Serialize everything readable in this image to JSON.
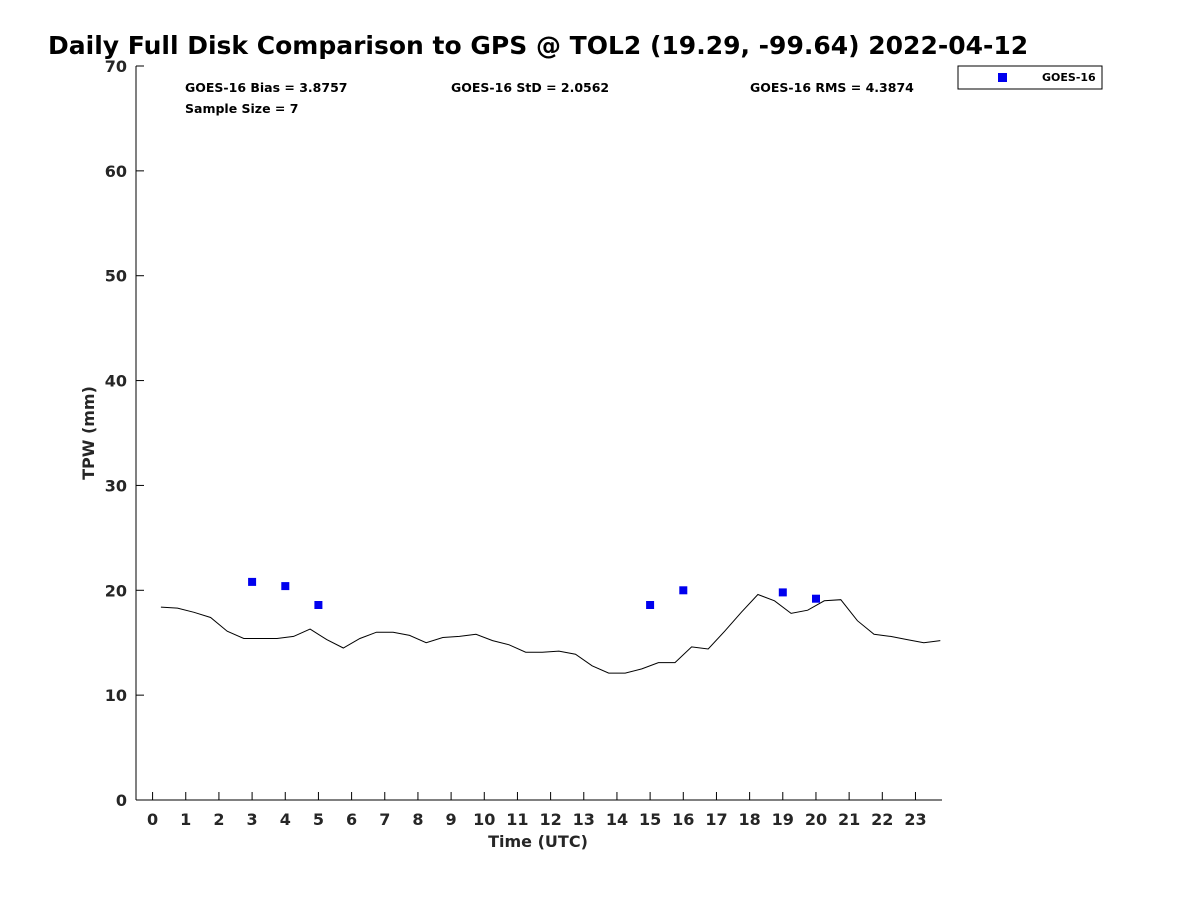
{
  "chart_data": {
    "type": "scatter",
    "title": "Daily Full Disk Comparison to GPS @ TOL2 (19.29, -99.64) 2022-04-12",
    "xlabel": "Time (UTC)",
    "ylabel": "TPW (mm)",
    "xlim": [
      -0.5,
      23.8
    ],
    "ylim": [
      0,
      70
    ],
    "x_ticks": [
      0,
      1,
      2,
      3,
      4,
      5,
      6,
      7,
      8,
      9,
      10,
      11,
      12,
      13,
      14,
      15,
      16,
      17,
      18,
      19,
      20,
      21,
      22,
      23
    ],
    "y_ticks": [
      0,
      10,
      20,
      30,
      40,
      50,
      60,
      70
    ],
    "grid": false,
    "legend_position": "top-right",
    "stats": {
      "bias": "GOES-16 Bias = 3.8757",
      "std": "GOES-16 StD = 2.0562",
      "rms": "GOES-16 RMS = 4.3874",
      "sample": "Sample Size = 7"
    },
    "series": [
      {
        "name": "GOES-16",
        "kind": "scatter",
        "color": "#0000ee",
        "x": [
          3,
          4,
          5,
          15,
          16,
          19,
          20
        ],
        "y": [
          20.8,
          20.4,
          18.6,
          18.6,
          20.0,
          19.8,
          19.2
        ]
      },
      {
        "kind": "line",
        "color": "#000000",
        "x": [
          0.25,
          0.75,
          1.25,
          1.75,
          2.25,
          2.75,
          3.25,
          3.75,
          4.25,
          4.75,
          5.25,
          5.75,
          6.25,
          6.75,
          7.25,
          7.75,
          8.25,
          8.75,
          9.25,
          9.75,
          10.25,
          10.75,
          11.25,
          11.75,
          12.25,
          12.75,
          13.25,
          13.75,
          14.25,
          14.75,
          15.25,
          15.75,
          16.25,
          16.75,
          17.25,
          17.75,
          18.25,
          18.75,
          19.25,
          19.75,
          20.25,
          20.75,
          21.25,
          21.75,
          22.25,
          22.75,
          23.25,
          23.75
        ],
        "y": [
          18.4,
          18.3,
          17.9,
          17.4,
          16.1,
          15.4,
          15.4,
          15.4,
          15.6,
          16.3,
          15.3,
          14.5,
          15.4,
          16.0,
          16.0,
          15.7,
          15.0,
          15.5,
          15.6,
          15.8,
          15.2,
          14.8,
          14.1,
          14.1,
          14.2,
          13.9,
          12.8,
          12.1,
          12.1,
          12.5,
          13.1,
          13.1,
          14.6,
          14.4,
          16.1,
          17.9,
          19.6,
          19.0,
          17.8,
          18.1,
          19.0,
          19.1,
          17.1,
          15.8,
          15.6,
          15.3,
          15.0,
          15.2
        ]
      }
    ]
  }
}
